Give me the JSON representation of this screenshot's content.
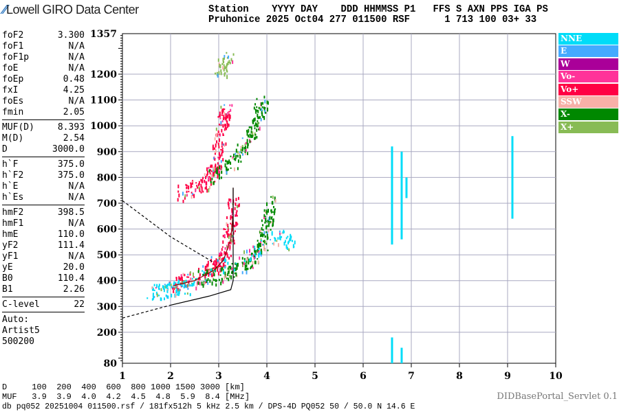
{
  "header": {
    "logo": "Lowell GIRO Data Center",
    "line1": "Station    YYYY DAY    DDD HHMMSS P1   FFS S AXN PPS IGA PS",
    "line2": "Pruhonice 2025 Oct04 277 011500 RSF      1 713 100 03+ 33"
  },
  "params": [
    [
      [
        "foF2",
        "3.300"
      ],
      [
        "foF1",
        "N/A"
      ],
      [
        "foF1p",
        "N/A"
      ],
      [
        "foE",
        "N/A"
      ],
      [
        "foEp",
        "0.48"
      ],
      [
        "fxI",
        "4.25"
      ],
      [
        "foEs",
        "N/A"
      ],
      [
        "fmin",
        "2.05"
      ]
    ],
    [
      [
        "MUF(D)",
        "8.393"
      ],
      [
        "M(D)",
        "2.54"
      ],
      [
        "D",
        "3000.0"
      ]
    ],
    [
      [
        "h`F",
        "375.0"
      ],
      [
        "h`F2",
        "375.0"
      ],
      [
        "h`E",
        "N/A"
      ],
      [
        "h`Es",
        "N/A"
      ]
    ],
    [
      [
        "hmF2",
        "398.5"
      ],
      [
        "hmF1",
        "N/A"
      ],
      [
        "hmE",
        "110.0"
      ],
      [
        "yF2",
        "111.4"
      ],
      [
        "yF1",
        "N/A"
      ],
      [
        "yE",
        "20.0"
      ],
      [
        "B0",
        "110.4"
      ],
      [
        "B1",
        "2.26"
      ]
    ],
    [
      [
        "C-level",
        "22"
      ]
    ]
  ],
  "auto": [
    "Auto:",
    "Artist5",
    "500200"
  ],
  "legend": [
    {
      "label": "NNE",
      "color": "#00dcf8"
    },
    {
      "label": "E",
      "color": "#44aaff"
    },
    {
      "label": "W",
      "color": "#aa0099"
    },
    {
      "label": "Vo-",
      "color": "#ff3399"
    },
    {
      "label": "Vo+",
      "color": "#ff0044"
    },
    {
      "label": "SSW",
      "color": "#f8b0a8"
    },
    {
      "label": "X-",
      "color": "#008800"
    },
    {
      "label": "X+",
      "color": "#88bb55"
    }
  ],
  "footer": {
    "d_line": "D     100  200  400  600  800 1000 1500 3000 [km]",
    "muf_line": "MUF   3.9  3.9  4.0  4.2  4.5  4.8  5.9  8.4 [MHz]",
    "info": "db pq052 20251004 011500.rsf / 181fx512h 5 kHz 2.5 km / DPS-4D PQ052 50 / 50.0 N 14.6 E",
    "servlet": "DIDBasePortal_Servlet 0.1"
  },
  "chart_data": {
    "type": "scatter",
    "xlim": [
      1,
      10
    ],
    "ylim": [
      80,
      1357
    ],
    "xticks": [
      "1",
      "2",
      "3",
      "4",
      "5",
      "6",
      "7",
      "8",
      "9",
      "10"
    ],
    "yticks": [
      "1357",
      "1200",
      "1100",
      "1000",
      "900",
      "800",
      "700",
      "600",
      "500",
      "400",
      "300",
      "200",
      "80"
    ],
    "grid": true,
    "traces": [
      {
        "mode": "Vo+",
        "points": [
          [
            2.0,
            380
          ],
          [
            2.4,
            395
          ],
          [
            2.8,
            430
          ],
          [
            3.0,
            460
          ],
          [
            3.15,
            520
          ],
          [
            3.25,
            600
          ],
          [
            3.3,
            700
          ]
        ]
      },
      {
        "mode": "X-",
        "points": [
          [
            2.6,
            400
          ],
          [
            3.0,
            410
          ],
          [
            3.4,
            440
          ],
          [
            3.7,
            480
          ],
          [
            3.9,
            540
          ],
          [
            4.0,
            620
          ],
          [
            4.1,
            700
          ]
        ]
      },
      {
        "mode": "NNE",
        "points": [
          [
            1.6,
            345
          ],
          [
            2.0,
            355
          ],
          [
            2.3,
            370
          ],
          [
            4.2,
            560
          ],
          [
            4.5,
            540
          ]
        ]
      },
      {
        "mode": "Vo+",
        "points": [
          [
            2.2,
            730
          ],
          [
            2.6,
            760
          ],
          [
            2.9,
            820
          ],
          [
            3.0,
            900
          ],
          [
            3.1,
            1000
          ],
          [
            3.15,
            1050
          ]
        ]
      },
      {
        "mode": "X-",
        "points": [
          [
            2.9,
            800
          ],
          [
            3.3,
            850
          ],
          [
            3.6,
            930
          ],
          [
            3.8,
            1030
          ],
          [
            3.9,
            1080
          ]
        ]
      },
      {
        "mode": "X+",
        "points": [
          [
            3.0,
            1200
          ],
          [
            3.2,
            1250
          ]
        ]
      },
      {
        "mode": "NNE",
        "points": [
          [
            6.6,
            540
          ],
          [
            6.6,
            920
          ],
          [
            6.8,
            560
          ],
          [
            6.8,
            900
          ],
          [
            6.9,
            720
          ],
          [
            6.9,
            800
          ],
          [
            9.1,
            640
          ],
          [
            9.1,
            960
          ]
        ]
      }
    ],
    "profile": {
      "solid": [
        [
          2.05,
          380
        ],
        [
          2.5,
          400
        ],
        [
          2.9,
          440
        ],
        [
          3.1,
          480
        ],
        [
          3.25,
          560
        ],
        [
          3.3,
          660
        ],
        [
          3.3,
          760
        ]
      ],
      "lower": [
        [
          1,
          255
        ],
        [
          2,
          305
        ],
        [
          2.8,
          340
        ],
        [
          3.25,
          365
        ],
        [
          3.3,
          400
        ],
        [
          3.3,
          760
        ]
      ],
      "dashed_upper": [
        [
          1,
          710
        ],
        [
          2,
          570
        ],
        [
          2.9,
          470
        ]
      ]
    }
  }
}
